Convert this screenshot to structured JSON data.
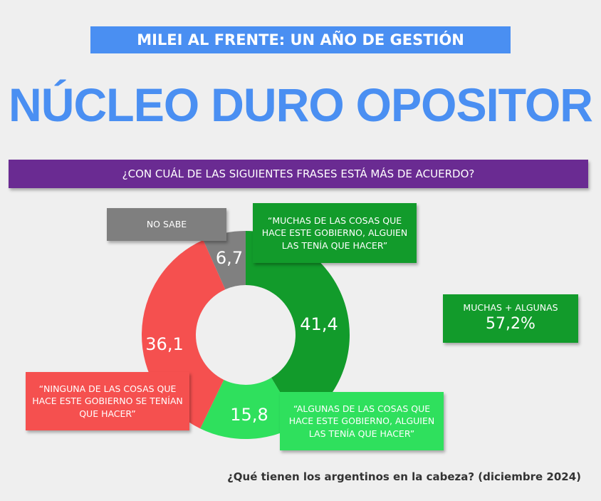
{
  "header": {
    "supertitle": "MILEI AL FRENTE: UN AÑO DE GESTIÓN",
    "title": "NÚCLEO DURO OPOSITOR",
    "question": "¿CON CUÁL DE LAS SIGUIENTES FRASES ESTÁ MÁS DE ACUERDO?"
  },
  "chart_data": {
    "type": "pie",
    "donut": true,
    "categories": [
      "“MUCHAS DE LAS COSAS QUE HACE ESTE GOBIERNO, ALGUIEN LAS TENÍA QUE HACER”",
      "“ALGUNAS DE LAS COSAS QUE HACE ESTE GOBIERNO, ALGUIEN LAS TENÍA QUE HACER”",
      "“NINGUNA DE LAS COSAS QUE HACE ESTE GOBIERNO SE TENÍAN QUE HACER”",
      "NO SABE"
    ],
    "values": [
      41.4,
      15.8,
      36.1,
      6.7
    ],
    "value_labels": [
      "41,4",
      "15,8",
      "36,1",
      "6,7"
    ],
    "colors": [
      "#129b2b",
      "#2fe05d",
      "#f5504f",
      "#808080"
    ],
    "annotation": {
      "label": "MUCHAS + ALGUNAS",
      "value": "57,2%"
    }
  },
  "source": "¿Qué tienen los argentinos en la cabeza? (diciembre 2024)"
}
